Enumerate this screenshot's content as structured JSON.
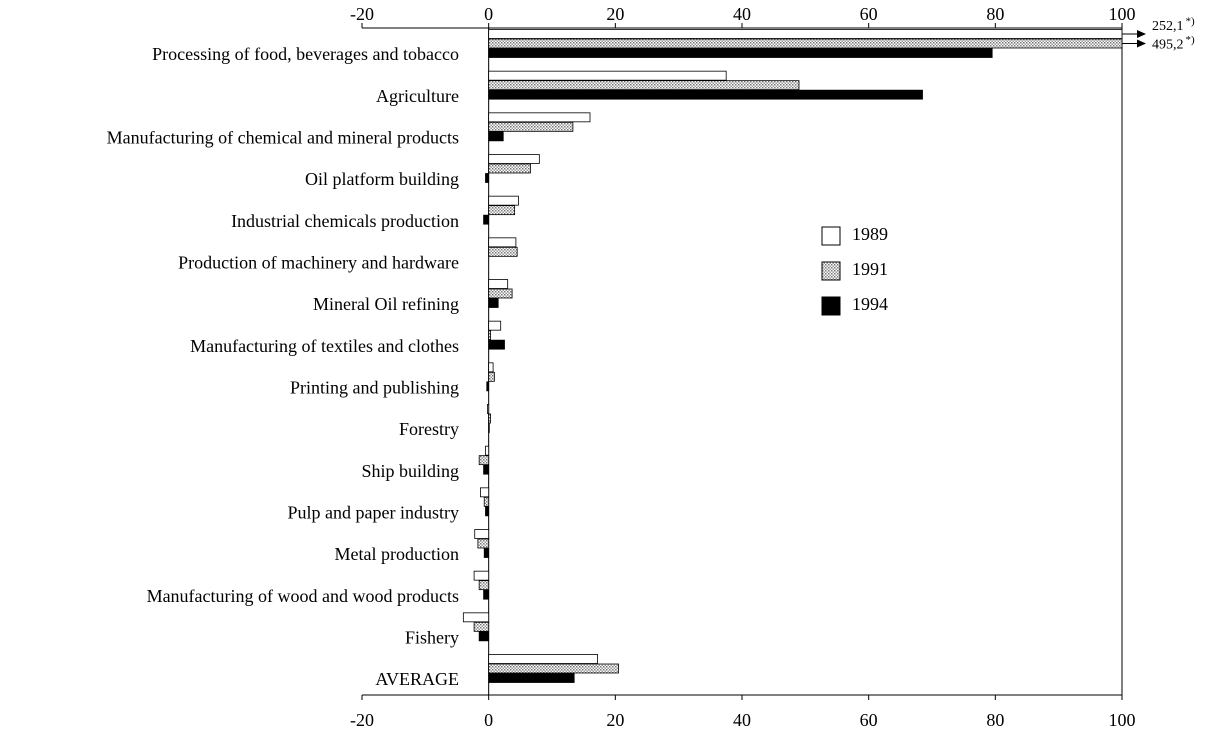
{
  "chart_data": {
    "type": "bar",
    "orientation": "horizontal",
    "categories": [
      "Processing of food, beverages and tobacco",
      "Agriculture",
      "Manufacturing of chemical and mineral products",
      "Oil platform building",
      "Industrial chemicals production",
      "Production of machinery and hardware",
      "Mineral Oil refining",
      "Manufacturing of textiles and clothes",
      "Printing and publishing",
      "Forestry",
      "Ship building",
      "Pulp and paper industry",
      "Metal production",
      "Manufacturing of wood and wood products",
      "Fishery",
      "AVERAGE"
    ],
    "series": [
      {
        "name": "1989",
        "color": "#ffffff",
        "values": [
          252.1,
          37.5,
          16,
          8,
          4.7,
          4.3,
          3,
          1.9,
          0.7,
          -0.2,
          -0.5,
          -1.3,
          -2.2,
          -2.3,
          -4,
          17.2
        ],
        "value_labels": [
          "252,1",
          null,
          null,
          null,
          null,
          null,
          null,
          null,
          null,
          null,
          null,
          null,
          null,
          null,
          null,
          null
        ]
      },
      {
        "name": "1991",
        "color": "#c8c8c8",
        "values": [
          495.2,
          49,
          13.3,
          6.6,
          4.1,
          4.5,
          3.7,
          0.3,
          0.9,
          0.3,
          -1.5,
          -0.7,
          -1.7,
          -1.5,
          -2.3,
          20.5
        ],
        "value_labels": [
          "495,2",
          null,
          null,
          null,
          null,
          null,
          null,
          null,
          null,
          null,
          null,
          null,
          null,
          null,
          null,
          null
        ]
      },
      {
        "name": "1994",
        "color": "#000000",
        "values": [
          79.5,
          68.5,
          2.3,
          -0.5,
          -0.8,
          0,
          1.5,
          2.5,
          -0.3,
          0.1,
          -0.8,
          -0.5,
          -0.7,
          -0.8,
          -1.5,
          13.5
        ]
      }
    ],
    "footnote_mark": "*)",
    "xlim": [
      -20,
      100
    ],
    "xticks": [
      -20,
      0,
      20,
      40,
      60,
      80,
      100
    ]
  }
}
